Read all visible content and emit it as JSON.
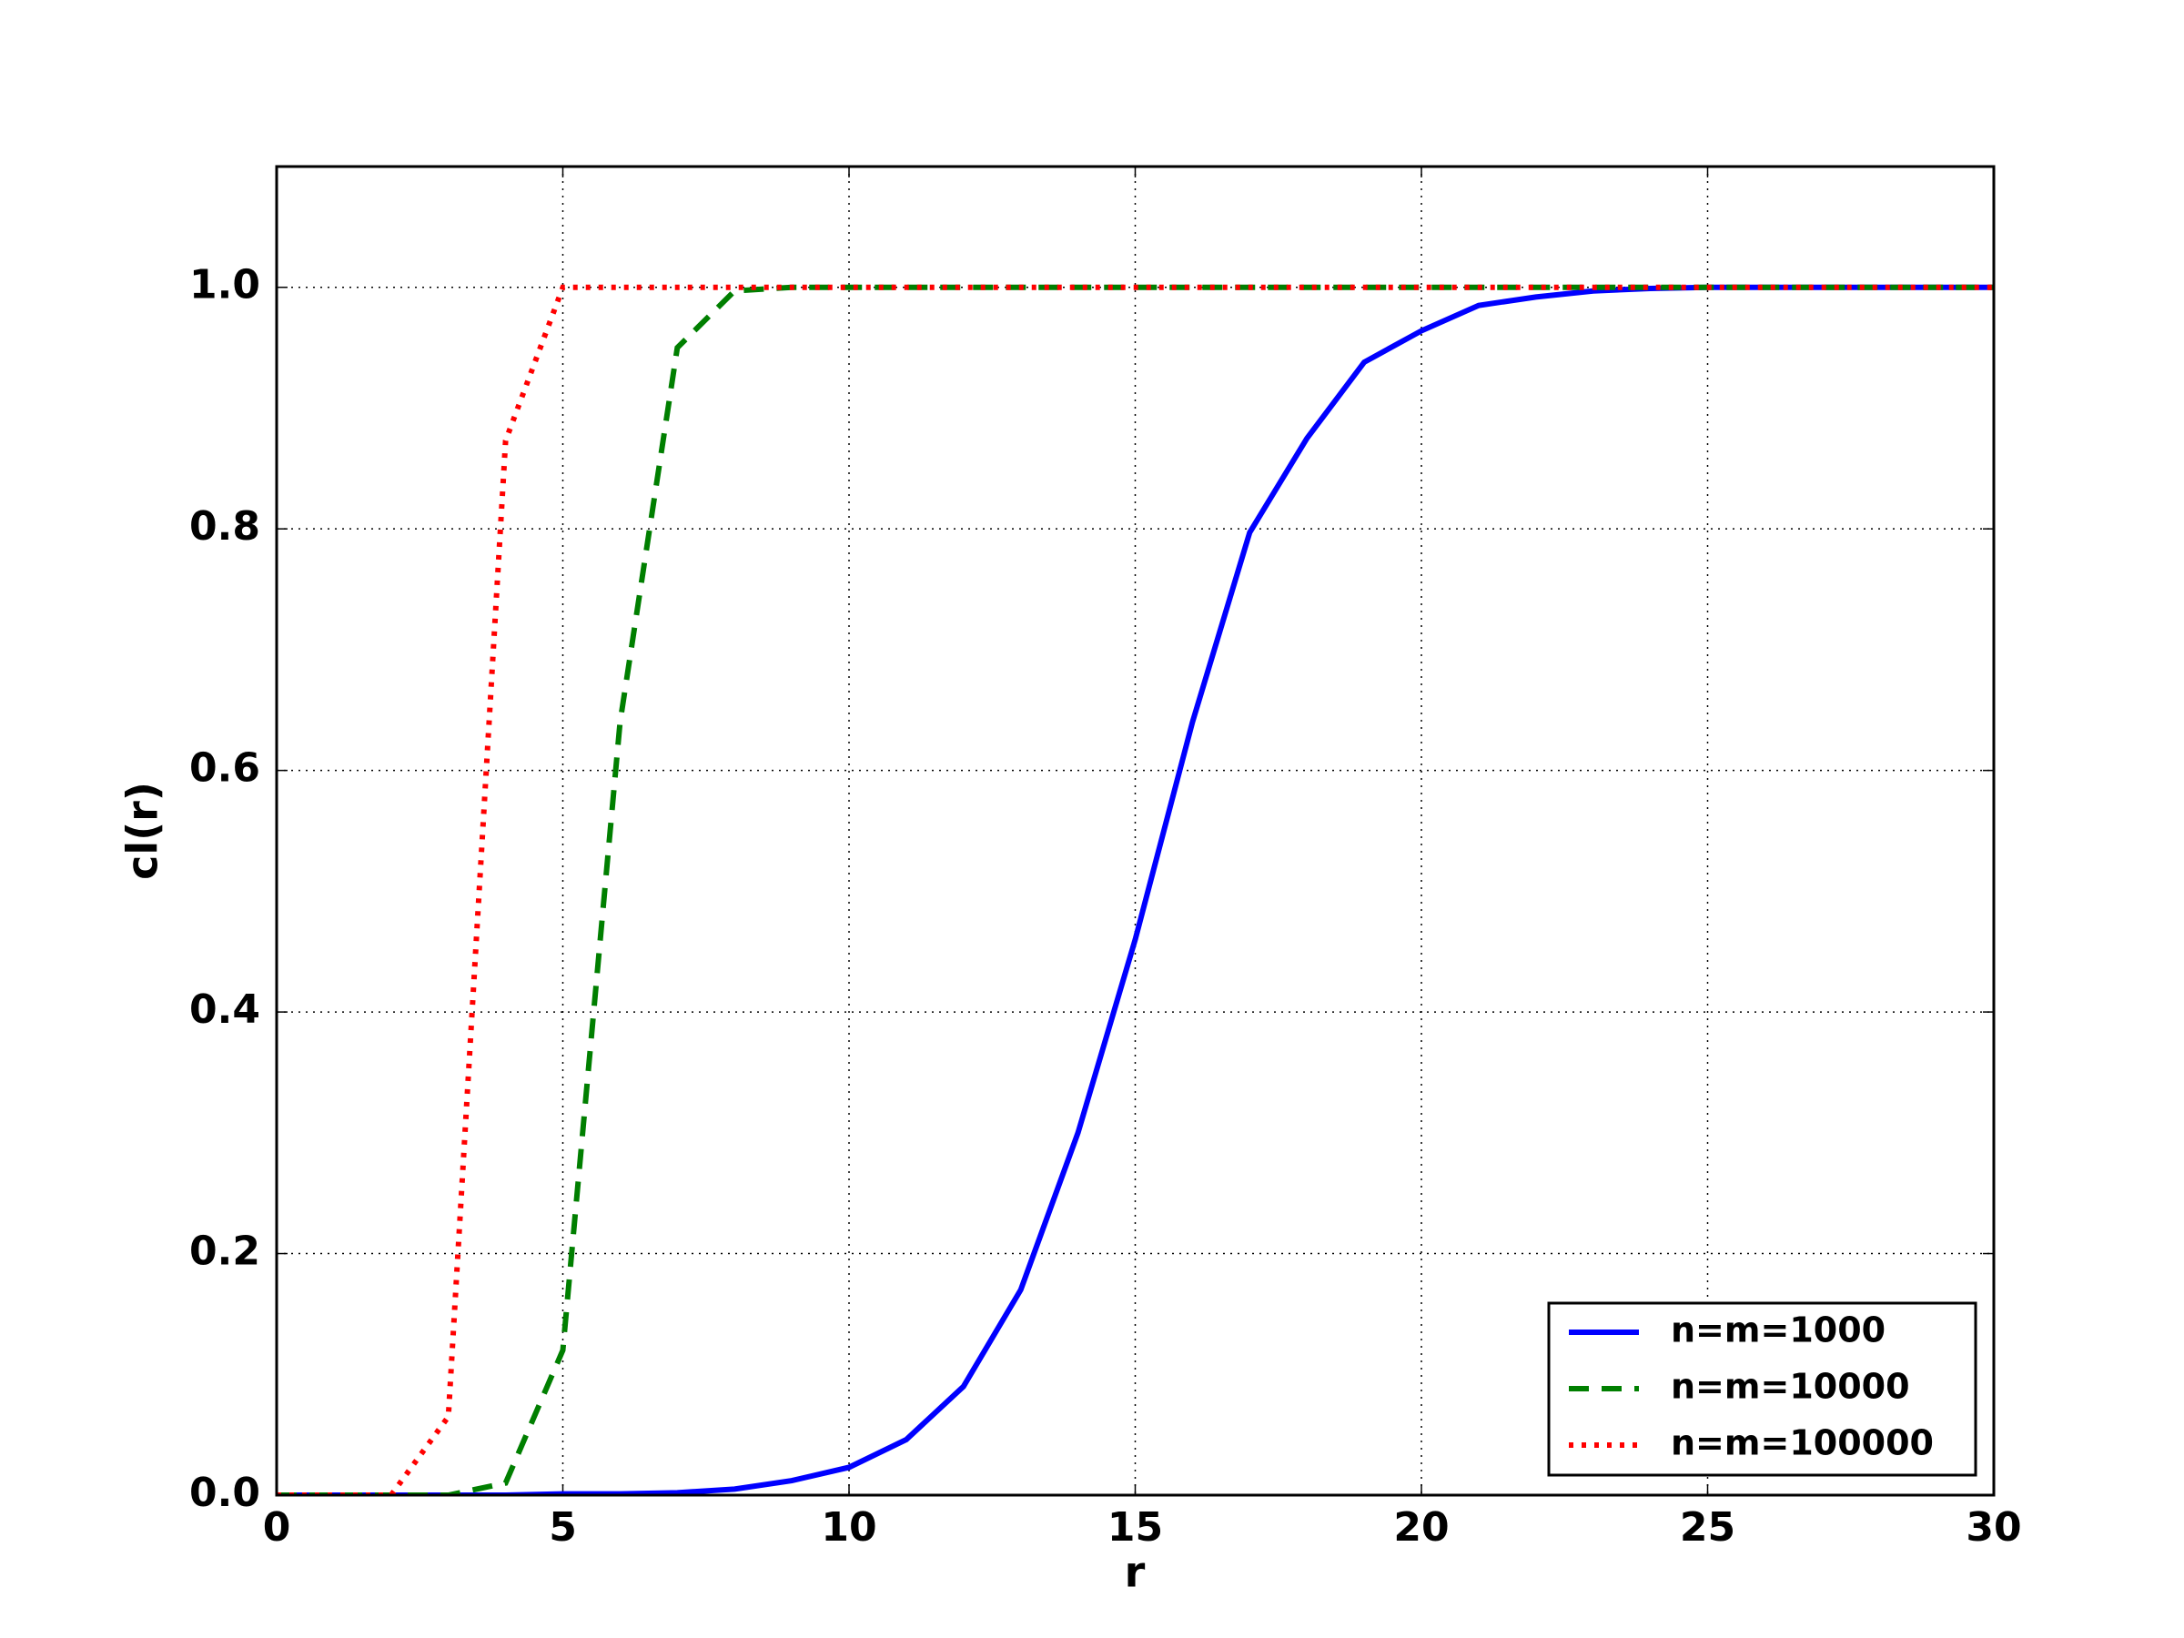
{
  "chart_data": {
    "type": "line",
    "xlabel": "r",
    "ylabel": "cl(r)",
    "x": [
      0,
      1,
      2,
      3,
      4,
      5,
      6,
      7,
      8,
      9,
      10,
      11,
      12,
      13,
      14,
      15,
      16,
      17,
      18,
      19,
      20,
      21,
      22,
      23,
      24,
      25,
      26,
      27,
      28,
      29,
      30
    ],
    "series": [
      {
        "name": "n=m=1000",
        "color": "#0000ff",
        "linestyle": "solid",
        "values": [
          0,
          0,
          0,
          0,
          0,
          0.001,
          0.001,
          0.002,
          0.005,
          0.012,
          0.023,
          0.046,
          0.09,
          0.17,
          0.3,
          0.46,
          0.64,
          0.797,
          0.875,
          0.938,
          0.964,
          0.985,
          0.992,
          0.997,
          0.999,
          1,
          1,
          1,
          1,
          1,
          1
        ]
      },
      {
        "name": "n=m=10000",
        "color": "#007f00",
        "linestyle": "dashed",
        "values": [
          0,
          0,
          0,
          0,
          0.01,
          0.12,
          0.64,
          0.95,
          0.997,
          1,
          1,
          1,
          1,
          1,
          1,
          1,
          1,
          1,
          1,
          1,
          1,
          1,
          1,
          1,
          1,
          1,
          1,
          1,
          1,
          1,
          1
        ]
      },
      {
        "name": "n=m=100000",
        "color": "#ff0000",
        "linestyle": "dotted",
        "values": [
          0,
          0,
          0,
          0.065,
          0.873,
          1,
          1,
          1,
          1,
          1,
          1,
          1,
          1,
          1,
          1,
          1,
          1,
          1,
          1,
          1,
          1,
          1,
          1,
          1,
          1,
          1,
          1,
          1,
          1,
          1,
          1
        ]
      }
    ],
    "xlim": [
      0,
      30
    ],
    "xticks": [
      0,
      5,
      10,
      15,
      20,
      25,
      30
    ],
    "ylim": [
      0,
      1.1
    ],
    "yticks": [
      {
        "value": 0,
        "label": "0.0"
      },
      0.2,
      0.4,
      0.6,
      0.8,
      {
        "value": 1,
        "label": "1.0"
      }
    ],
    "grid": true,
    "legend": "lower right"
  }
}
